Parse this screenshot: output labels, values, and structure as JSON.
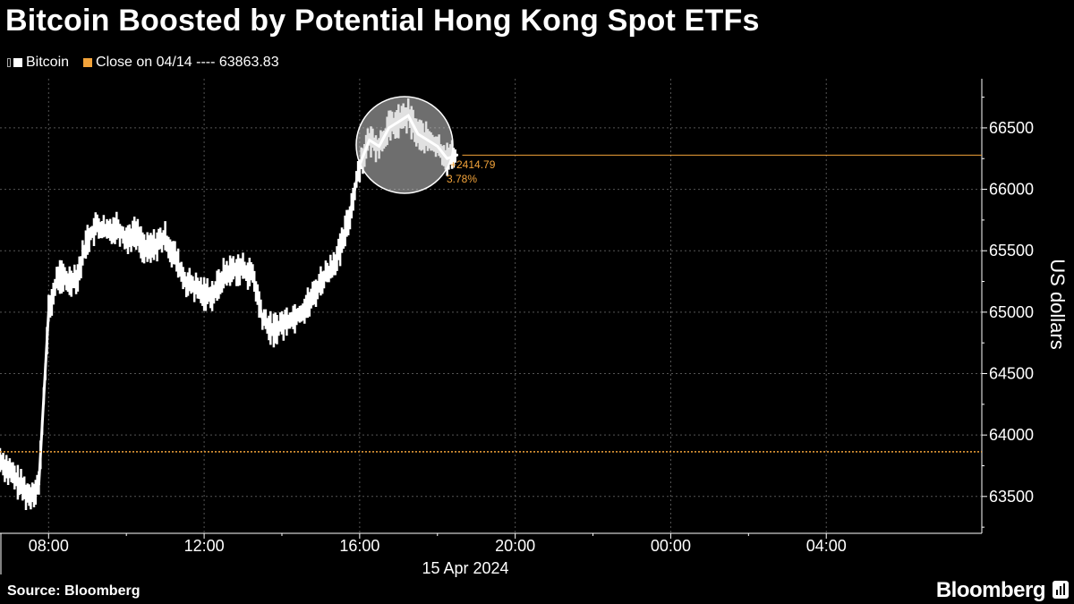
{
  "header": {
    "title": "Bitcoin Boosted by Potential Hong Kong Spot ETFs"
  },
  "legend": {
    "series_label": "Bitcoin",
    "ref_label": "Close on 04/14 ---- 63863.83"
  },
  "footer": {
    "source": "Source: Bloomberg",
    "brand": "Bloomberg"
  },
  "colors": {
    "background": "#000000",
    "series": "#ffffff",
    "reference": "#f2a33a",
    "grid": "#555555"
  },
  "chart_data": {
    "type": "line",
    "title": "Bitcoin Boosted by Potential Hong Kong Spot ETFs",
    "ylabel": "US dollars",
    "xlabel": "15 Apr 2024",
    "ylim": [
      63200,
      66900
    ],
    "xlim": [
      "2024-04-15 06:45",
      "2024-04-16 08:00"
    ],
    "y_ticks": [
      63500,
      64000,
      64500,
      65000,
      65500,
      66000,
      66500
    ],
    "x_ticks": [
      "08:00",
      "12:00",
      "16:00",
      "20:00",
      "00:00",
      "04:00"
    ],
    "grid": true,
    "legend_position": "top-left",
    "reference_line": {
      "label": "Close on 04/14",
      "value": 63863.83
    },
    "last_value_line": 66278.62,
    "annotation": {
      "change": "+2414.79",
      "percent": "3.78%"
    },
    "series": [
      {
        "name": "Bitcoin",
        "x": [
          "06:45",
          "07:00",
          "07:15",
          "07:30",
          "07:45",
          "08:00",
          "08:15",
          "08:30",
          "08:45",
          "09:00",
          "09:15",
          "09:30",
          "09:45",
          "10:00",
          "10:15",
          "10:30",
          "10:45",
          "11:00",
          "11:15",
          "11:30",
          "11:45",
          "12:00",
          "12:15",
          "12:30",
          "12:45",
          "13:00",
          "13:15",
          "13:30",
          "13:45",
          "14:00",
          "14:15",
          "14:30",
          "14:45",
          "15:00",
          "15:15",
          "15:30",
          "15:45",
          "16:00",
          "16:15",
          "16:30",
          "16:45",
          "17:00",
          "17:15",
          "17:30",
          "17:45",
          "18:00",
          "18:15",
          "18:30"
        ],
        "values": [
          63800,
          63700,
          63600,
          63500,
          63600,
          65000,
          65300,
          65250,
          65300,
          65600,
          65700,
          65650,
          65700,
          65600,
          65650,
          65500,
          65550,
          65600,
          65450,
          65250,
          65200,
          65150,
          65150,
          65300,
          65350,
          65350,
          65300,
          64950,
          64850,
          64900,
          64950,
          65000,
          65100,
          65250,
          65350,
          65500,
          65800,
          66200,
          66400,
          66350,
          66500,
          66550,
          66600,
          66450,
          66400,
          66350,
          66250,
          66279
        ]
      }
    ]
  }
}
